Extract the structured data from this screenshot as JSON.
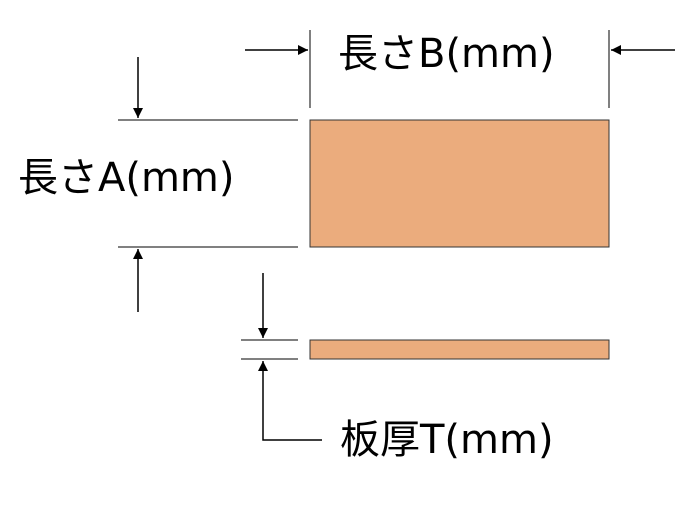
{
  "labels": {
    "length_b": "長さB(mm)",
    "length_a": "長さA(mm)",
    "thickness": "板厚T(mm)"
  },
  "colors": {
    "plate_fill": "#EBAC7D",
    "line": "#000000"
  }
}
